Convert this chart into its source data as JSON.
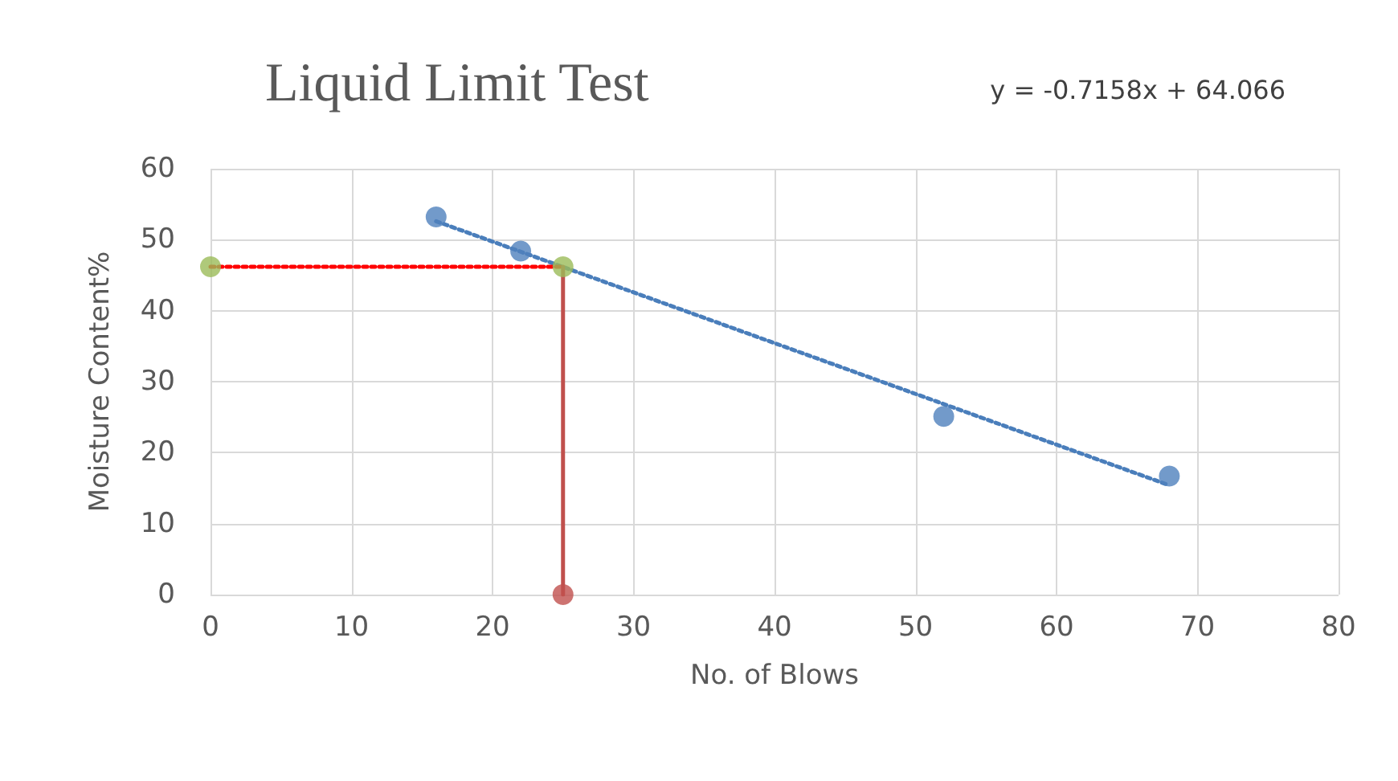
{
  "chart_data": {
    "type": "scatter",
    "title": "Liquid Limit Test",
    "xlabel": "No. of Blows",
    "ylabel": "Moisture Content%",
    "annotations": [
      "y = -0.7158x + 64.066"
    ],
    "xlim": [
      0,
      80
    ],
    "xticks": [
      0,
      10,
      20,
      30,
      40,
      50,
      60,
      70,
      80
    ],
    "ylim": [
      0,
      60
    ],
    "yticks": [
      0,
      10,
      20,
      30,
      40,
      50,
      60
    ],
    "grid": true,
    "series": [
      {
        "type": "line",
        "x": [
          16,
          68
        ],
        "values": [
          52.6,
          15.4
        ],
        "color": "#4a7ebb",
        "line_style": "dotted",
        "marker": "none"
      },
      {
        "type": "line",
        "x": [
          0,
          25
        ],
        "values": [
          46.2,
          46.2
        ],
        "color": "#ff0000",
        "line_style": "dotted",
        "marker": "none"
      },
      {
        "type": "line",
        "x": [
          25,
          25
        ],
        "values": [
          0,
          46.2
        ],
        "color": "#c0504d",
        "line_style": "solid",
        "marker": "none"
      },
      {
        "x": [
          16,
          22,
          52,
          68
        ],
        "values": [
          53.2,
          48.4,
          25.1,
          16.7
        ],
        "color": "#4f81bd",
        "marker": "circle"
      },
      {
        "x": [
          0,
          25
        ],
        "values": [
          46.2,
          46.2
        ],
        "color": "#9bbb59",
        "marker": "circle"
      },
      {
        "x": [
          25
        ],
        "values": [
          0
        ],
        "color": "#c0504d",
        "marker": "circle"
      }
    ]
  }
}
